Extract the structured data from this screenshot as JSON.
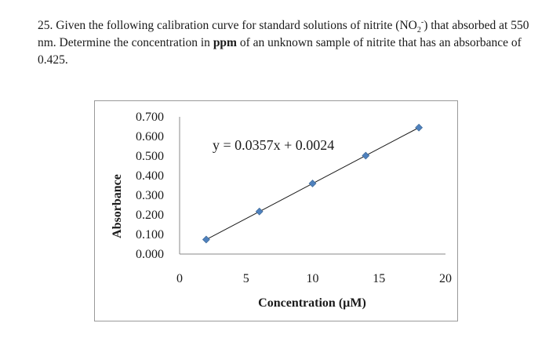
{
  "question": {
    "number": "25.",
    "part1": " Given the following calibration curve for standard solutions of nitrite (NO",
    "sub": "2",
    "sup": "-",
    "part2": ") that absorbed at 550 nm. Determine the concentration in ",
    "bold": "ppm",
    "part3": " of an unknown sample of nitrite that has an absorbance of 0.425."
  },
  "chart_data": {
    "type": "scatter",
    "title": "",
    "xlabel": "Concentration (µM)",
    "ylabel": "Absorbance",
    "xlim": [
      0,
      20
    ],
    "ylim": [
      0,
      0.7
    ],
    "x_ticks": [
      "0",
      "5",
      "10",
      "15",
      "20"
    ],
    "y_ticks": [
      "0.000",
      "0.100",
      "0.200",
      "0.300",
      "0.400",
      "0.500",
      "0.600",
      "0.700"
    ],
    "grid": false,
    "marker_color": "#4f81bd",
    "line_color": "#1a1a1a",
    "x": [
      2,
      6,
      10,
      14,
      18
    ],
    "y": [
      0.074,
      0.217,
      0.36,
      0.502,
      0.645
    ],
    "trendline": {
      "slope": 0.0357,
      "intercept": 0.0024,
      "equation": "y = 0.0357x + 0.0024"
    }
  }
}
